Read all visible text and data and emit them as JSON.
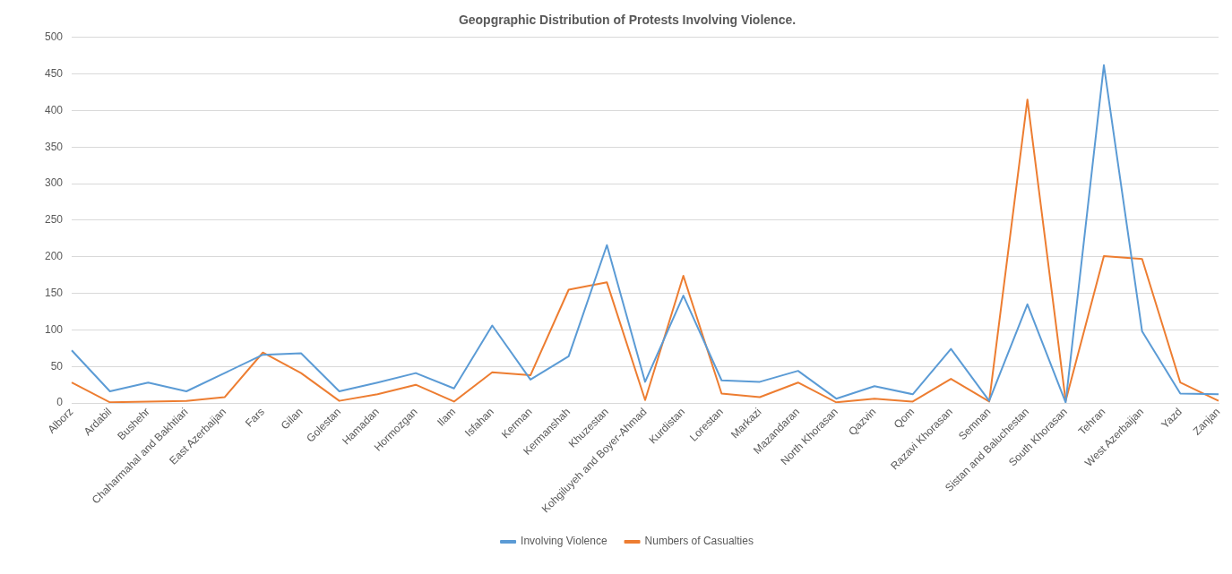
{
  "chart_data": {
    "type": "line",
    "title": "Geopgraphic Distribution of Protests Involving Violence.",
    "categories": [
      "Alborz",
      "Ardabil",
      "Bushehr",
      "Chaharmahal and Bakhtiari",
      "East Azerbaijan",
      "Fars",
      "Gilan",
      "Golestan",
      "Hamadan",
      "Hormozgan",
      "Ilam",
      "Isfahan",
      "Kerman",
      "Kermanshah",
      "Khuzestan",
      "Kohgiluyeh and Boyer-Ahmad",
      "Kurdistan",
      "Lorestan",
      "Markazi",
      "Mazandaran",
      "North Khorasan",
      "Qazvin",
      "Qom",
      "Razavi Khorasan",
      "Semnan",
      "Sistan and Baluchestan",
      "South Khorasan",
      "Tehran",
      "West Azerbaijan",
      "Yazd",
      "Zanjan"
    ],
    "series": [
      {
        "name": "Involving Violence",
        "color": "#5b9bd5",
        "values": [
          72,
          16,
          28,
          16,
          41,
          66,
          68,
          16,
          28,
          41,
          20,
          106,
          32,
          64,
          216,
          29,
          147,
          31,
          29,
          44,
          6,
          23,
          12,
          74,
          3,
          135,
          1,
          462,
          98,
          13,
          12
        ]
      },
      {
        "name": "Numbers of Casualties",
        "color": "#ed7d31",
        "values": [
          28,
          1,
          2,
          3,
          8,
          69,
          41,
          3,
          12,
          25,
          2,
          42,
          38,
          155,
          165,
          4,
          174,
          13,
          8,
          28,
          1,
          6,
          2,
          33,
          2,
          415,
          3,
          201,
          197,
          28,
          3
        ]
      }
    ],
    "ylim": [
      0,
      500
    ],
    "yticks": [
      0,
      50,
      100,
      150,
      200,
      250,
      300,
      350,
      400,
      450,
      500
    ],
    "grid": "y",
    "legend": "bottom",
    "marker": "none",
    "line_style": "solid"
  }
}
